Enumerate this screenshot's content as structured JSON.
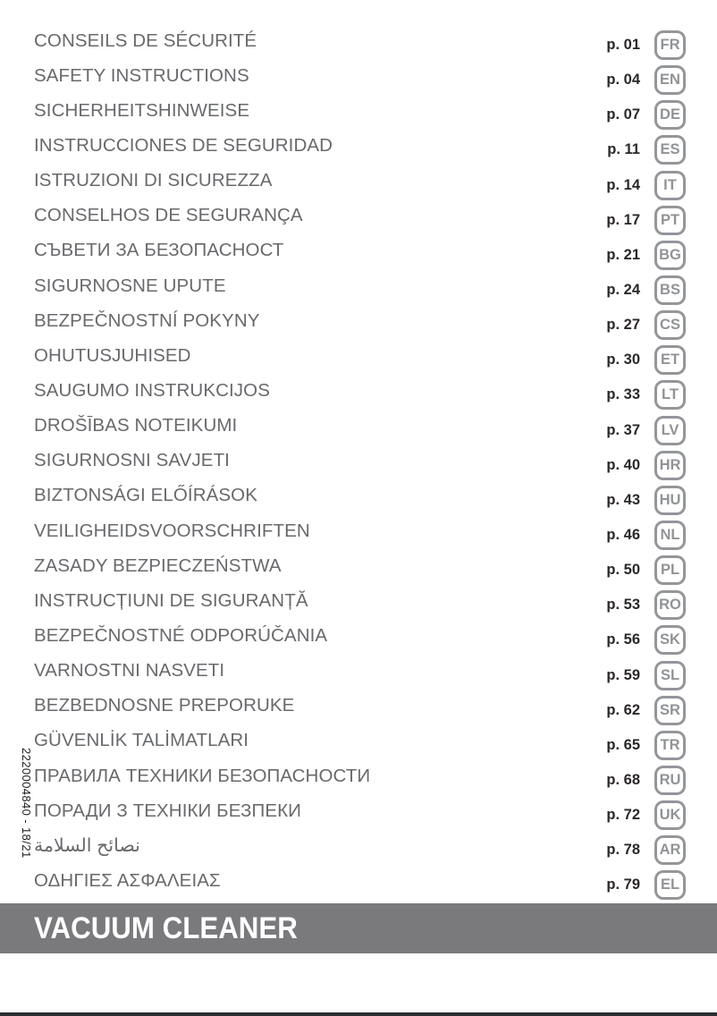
{
  "side_code": "2220004840 - 18/21",
  "banner": {
    "title": "VACUUM CLEANER",
    "background": "#7a797c",
    "text_color": "#ffffff"
  },
  "footer_bar_color": "#2b2e32",
  "colors": {
    "title_text": "#68696c",
    "page_text": "#2b2829",
    "badge": "#939598"
  },
  "toc": {
    "rows": [
      {
        "title": "CONSEILS DE SÉCURITÉ",
        "page": "p. 01",
        "lang": "FR"
      },
      {
        "title": "SAFETY INSTRUCTIONS",
        "page": "p. 04",
        "lang": "EN"
      },
      {
        "title": "SICHERHEITSHINWEISE",
        "page": "p. 07",
        "lang": "DE"
      },
      {
        "title": "INSTRUCCIONES DE SEGURIDAD",
        "page": "p. 11",
        "lang": "ES"
      },
      {
        "title": "ISTRUZIONI DI SICUREZZA",
        "page": "p. 14",
        "lang": "IT"
      },
      {
        "title": "CONSELHOS DE SEGURANÇA",
        "page": "p. 17",
        "lang": "PT"
      },
      {
        "title": "СЪВЕТИ ЗА БЕЗОПАСНОСТ",
        "page": "p. 21",
        "lang": "BG"
      },
      {
        "title": "SIGURNOSNE UPUTE",
        "page": "p. 24",
        "lang": "BS"
      },
      {
        "title": "BEZPEČNOSTNÍ POKYNY",
        "page": "p. 27",
        "lang": "CS"
      },
      {
        "title": "OHUTUSJUHISED",
        "page": "p. 30",
        "lang": "ET"
      },
      {
        "title": "SAUGUMO INSTRUKCIJOS",
        "page": "p. 33",
        "lang": "LT"
      },
      {
        "title": "DROŠĪBAS NOTEIKUMI",
        "page": "p. 37",
        "lang": "LV"
      },
      {
        "title": "SIGURNOSNI SAVJETI",
        "page": "p. 40",
        "lang": "HR"
      },
      {
        "title": "BIZTONSÁGI ELŐÍRÁSOK",
        "page": "p. 43",
        "lang": "HU"
      },
      {
        "title": "VEILIGHEIDSVOORSCHRIFTEN",
        "page": "p. 46",
        "lang": "NL"
      },
      {
        "title": "ZASADY BEZPIECZEŃSTWA",
        "page": "p. 50",
        "lang": "PL"
      },
      {
        "title": "INSTRUCȚIUNI DE SIGURANȚĂ",
        "page": "p. 53",
        "lang": "RO"
      },
      {
        "title": "BEZPEČNOSTNÉ ODPORÚČANIA",
        "page": "p. 56",
        "lang": "SK"
      },
      {
        "title": "VARNOSTNI NASVETI",
        "page": "p. 59",
        "lang": "SL"
      },
      {
        "title": "BEZBEDNOSNE PREPORUKE",
        "page": "p. 62",
        "lang": "SR"
      },
      {
        "title": "GÜVENLİK TALİMATLARI",
        "page": "p. 65",
        "lang": "TR"
      },
      {
        "title": "ПРАВИЛА ТЕХНИКИ БЕЗОПАСНОСТИ",
        "page": "p. 68",
        "lang": "RU"
      },
      {
        "title": "ПОРАДИ З ТЕХНІКИ БЕЗПЕКИ",
        "page": "p. 72",
        "lang": "UK"
      },
      {
        "title": "نصائح السلامة",
        "page": "p. 78",
        "lang": "AR"
      },
      {
        "title": "ΟΔΗΓΙΕΣ ΑΣΦΑΛΕΙΑΣ",
        "page": "p. 79",
        "lang": "EL"
      }
    ]
  }
}
